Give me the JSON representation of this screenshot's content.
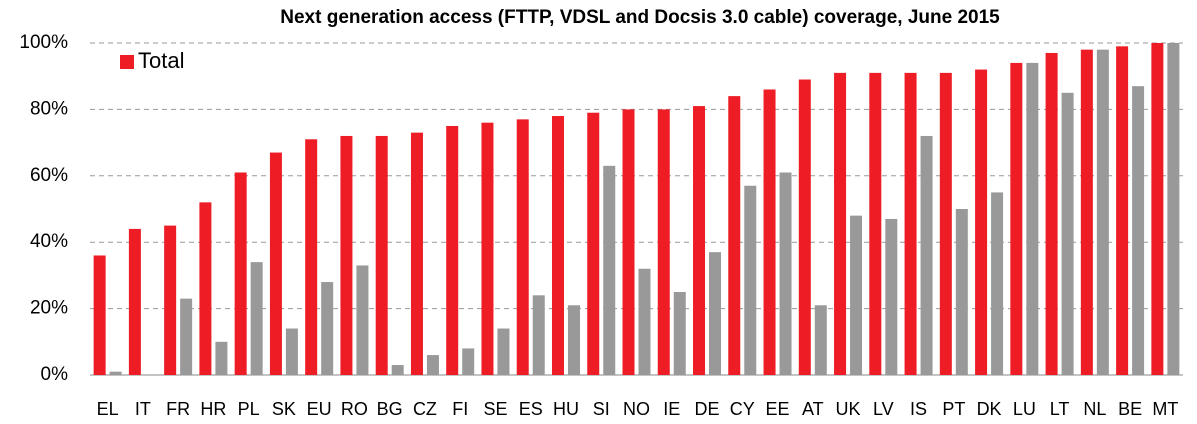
{
  "chart_data": {
    "type": "bar",
    "title": "Next generation access (FTTP, VDSL and Docsis 3.0 cable) coverage, June 2015",
    "categories": [
      "EL",
      "IT",
      "FR",
      "HR",
      "PL",
      "SK",
      "EU",
      "RO",
      "BG",
      "CZ",
      "FI",
      "SE",
      "ES",
      "HU",
      "SI",
      "NO",
      "IE",
      "DE",
      "CY",
      "EE",
      "AT",
      "UK",
      "LV",
      "IS",
      "PT",
      "DK",
      "LU",
      "LT",
      "NL",
      "BE",
      "MT"
    ],
    "series": [
      {
        "name": "Total",
        "color": "#ee1c25",
        "values": [
          36,
          44,
          45,
          52,
          61,
          67,
          71,
          72,
          72,
          73,
          75,
          76,
          77,
          78,
          79,
          80,
          80,
          81,
          84,
          86,
          89,
          91,
          91,
          91,
          91,
          92,
          94,
          97,
          98,
          99,
          100
        ]
      },
      {
        "color": "#999999",
        "values": [
          1,
          0,
          23,
          10,
          34,
          14,
          28,
          33,
          3,
          6,
          8,
          14,
          24,
          21,
          63,
          32,
          25,
          37,
          57,
          61,
          21,
          48,
          47,
          72,
          50,
          55,
          94,
          85,
          98,
          87,
          100
        ]
      }
    ],
    "ylim": [
      0,
      100
    ],
    "yticks": [
      {
        "value": 0,
        "label": "0%"
      },
      {
        "value": 20,
        "label": "20%"
      },
      {
        "value": 40,
        "label": "40%"
      },
      {
        "value": 60,
        "label": "60%"
      },
      {
        "value": 80,
        "label": "80%"
      },
      {
        "value": 100,
        "label": "100%"
      }
    ],
    "grid": true,
    "legend": "top-left"
  }
}
